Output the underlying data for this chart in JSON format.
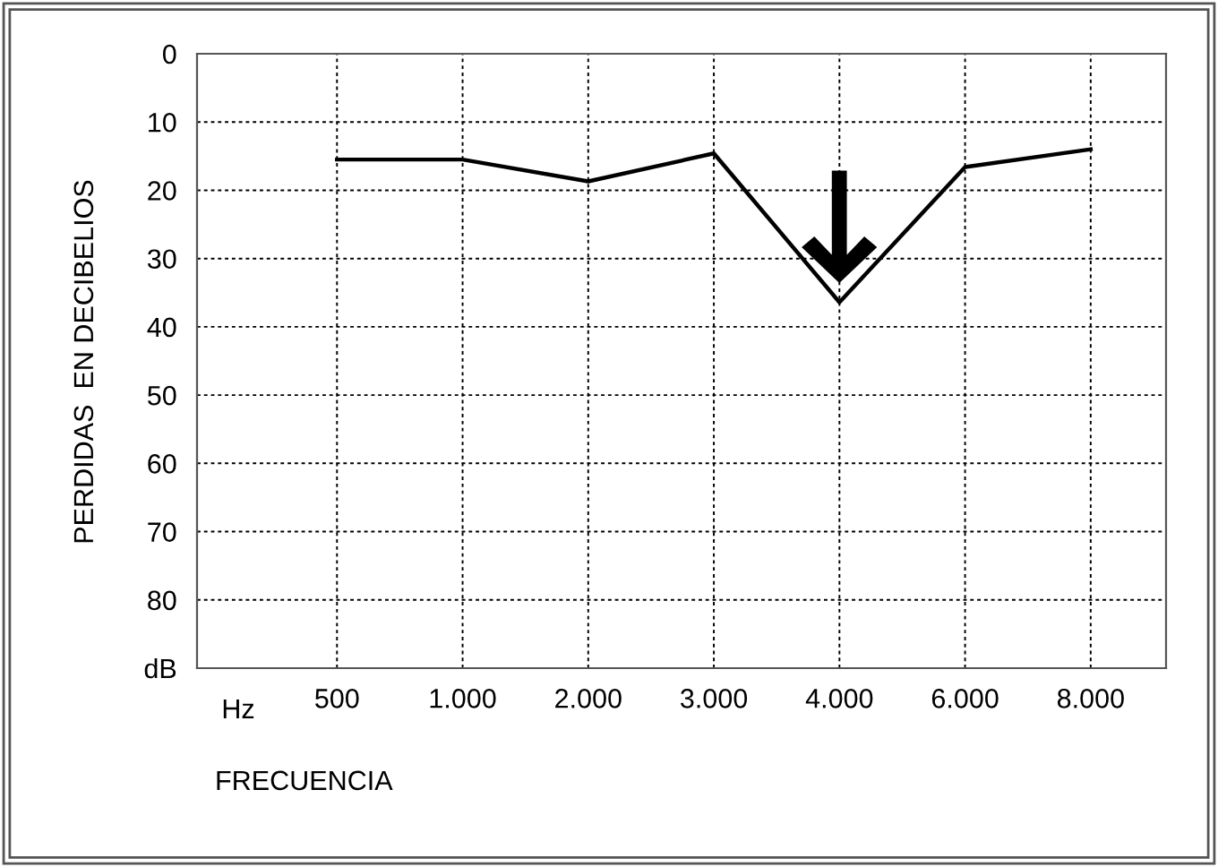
{
  "chart_data": {
    "type": "line",
    "ylabel": "PERDIDAS  EN DECIBELIOS",
    "xlabel": "FRECUENCIA",
    "annotations": [
      "Hz"
    ],
    "categories": [
      "500",
      "1.000",
      "2.000",
      "3.000",
      "4.000",
      "6.000",
      "8.000"
    ],
    "series": [
      {
        "color": "#000000",
        "values": [
          15.5,
          15.5,
          18.7,
          14.6,
          36.4,
          16.6,
          14.0
        ]
      }
    ],
    "ylim": [
      90,
      0
    ],
    "yticks": [
      0,
      10,
      20,
      30,
      40,
      50,
      60,
      70,
      80,
      {
        "value": 90,
        "label": "dB"
      }
    ],
    "grid": true,
    "marker": "none",
    "line_style": "solid"
  }
}
